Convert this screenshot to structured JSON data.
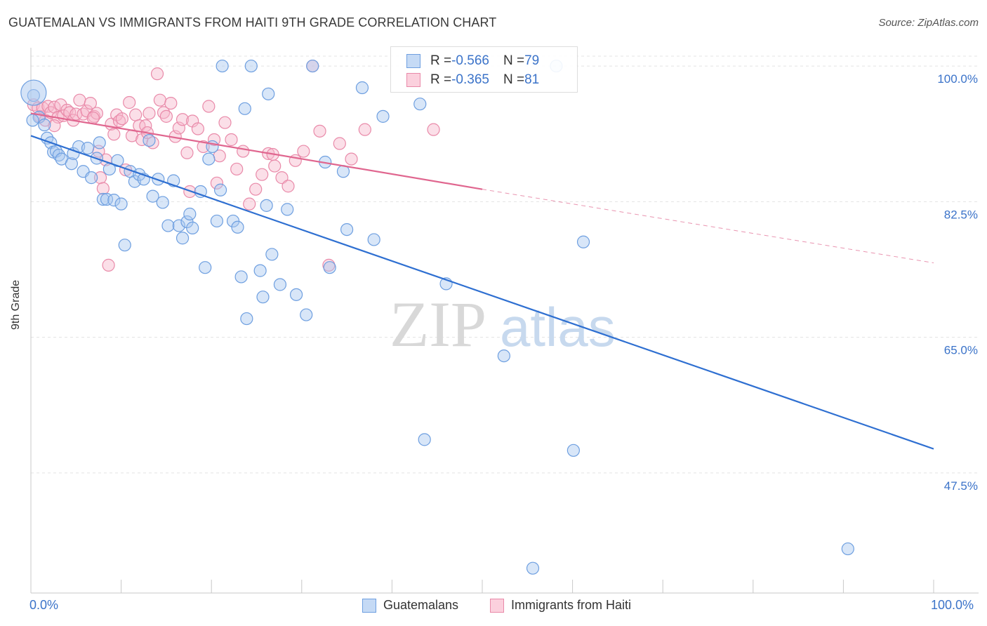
{
  "title": "GUATEMALAN VS IMMIGRANTS FROM HAITI 9TH GRADE CORRELATION CHART",
  "source": "Source: ZipAtlas.com",
  "watermark": {
    "zip": "ZIP",
    "atlas": "atlas"
  },
  "legend": {
    "rows": [
      {
        "r_label": "R = ",
        "r_value": "-0.566",
        "n_label": "N = ",
        "n_value": "79",
        "color": "#a9c8f0",
        "border": "#6e9fe0"
      },
      {
        "r_label": "R = ",
        "r_value": "-0.365",
        "n_label": "N = ",
        "n_value": "81",
        "color": "#f7b8cb",
        "border": "#e98aa9"
      }
    ]
  },
  "bottom_legend": [
    "Guatemalans",
    "Immigrants from Haiti"
  ],
  "colors": {
    "blue_fill": "#a9c8f0",
    "blue_stroke": "#6e9fe0",
    "blue_line": "#2e6fd1",
    "pink_fill": "#f7b8cb",
    "pink_stroke": "#e98aa9",
    "pink_line": "#e0668f",
    "tick": "#3b73c9"
  },
  "chart_data": {
    "type": "scatter",
    "title": "GUATEMALAN VS IMMIGRANTS FROM HAITI 9TH GRADE CORRELATION CHART",
    "xlabel": "",
    "ylabel": "9th Grade",
    "xlim": [
      0,
      100
    ],
    "ylim": [
      32,
      102
    ],
    "x_tick_labels": [
      "0.0%",
      "100.0%"
    ],
    "y_ticks": [
      100,
      82.5,
      65,
      47.5
    ],
    "y_tick_labels": [
      "100.0%",
      "82.5%",
      "65.0%",
      "47.5%"
    ],
    "grid": "horizontal dashed",
    "series": [
      {
        "name": "Guatemalans",
        "trend": {
          "x0": 0,
          "y0": 91.0,
          "x1": 100,
          "y1": 50.6
        },
        "points": [
          [
            0.3,
            96.2
          ],
          [
            0.9,
            93.4
          ],
          [
            1.5,
            92.4
          ],
          [
            1.8,
            90.7
          ],
          [
            2.2,
            90.1
          ],
          [
            2.5,
            88.9
          ],
          [
            2.8,
            89.0
          ],
          [
            3.1,
            88.5
          ],
          [
            3.4,
            88.0
          ],
          [
            4.5,
            87.4
          ],
          [
            4.7,
            88.7
          ],
          [
            5.3,
            89.6
          ],
          [
            5.8,
            86.4
          ],
          [
            6.3,
            89.4
          ],
          [
            6.7,
            85.6
          ],
          [
            7.3,
            88.1
          ],
          [
            7.6,
            90.1
          ],
          [
            8.0,
            82.8
          ],
          [
            8.4,
            82.8
          ],
          [
            8.7,
            86.7
          ],
          [
            9.2,
            82.7
          ],
          [
            9.6,
            87.8
          ],
          [
            10.0,
            82.2
          ],
          [
            10.4,
            76.9
          ],
          [
            11.0,
            86.4
          ],
          [
            11.5,
            85.1
          ],
          [
            12.0,
            86.0
          ],
          [
            12.5,
            85.4
          ],
          [
            13.1,
            90.4
          ],
          [
            13.5,
            83.2
          ],
          [
            14.1,
            85.4
          ],
          [
            14.6,
            82.4
          ],
          [
            15.2,
            79.4
          ],
          [
            15.8,
            85.2
          ],
          [
            16.4,
            79.4
          ],
          [
            16.8,
            77.8
          ],
          [
            17.3,
            79.9
          ],
          [
            17.6,
            80.9
          ],
          [
            17.9,
            79.1
          ],
          [
            18.8,
            83.8
          ],
          [
            19.3,
            74.0
          ],
          [
            19.7,
            88.0
          ],
          [
            20.1,
            89.6
          ],
          [
            20.6,
            80.0
          ],
          [
            21.0,
            84.0
          ],
          [
            21.2,
            100.0
          ],
          [
            22.4,
            80.0
          ],
          [
            22.9,
            79.2
          ],
          [
            23.3,
            72.8
          ],
          [
            23.7,
            94.5
          ],
          [
            23.9,
            67.4
          ],
          [
            24.4,
            100.0
          ],
          [
            25.4,
            73.6
          ],
          [
            25.7,
            70.2
          ],
          [
            26.1,
            82.0
          ],
          [
            26.3,
            96.4
          ],
          [
            26.7,
            75.7
          ],
          [
            27.6,
            71.8
          ],
          [
            28.4,
            81.5
          ],
          [
            29.4,
            70.5
          ],
          [
            30.5,
            67.9
          ],
          [
            31.2,
            100.0
          ],
          [
            32.6,
            87.6
          ],
          [
            33.1,
            74.0
          ],
          [
            34.6,
            86.4
          ],
          [
            35.0,
            78.9
          ],
          [
            36.7,
            97.2
          ],
          [
            38.0,
            77.6
          ],
          [
            39.0,
            93.5
          ],
          [
            43.1,
            95.1
          ],
          [
            43.6,
            51.8
          ],
          [
            46.0,
            71.9
          ],
          [
            52.4,
            62.6
          ],
          [
            55.6,
            35.2
          ],
          [
            58.2,
            100.0
          ],
          [
            60.1,
            50.4
          ],
          [
            61.2,
            77.3
          ],
          [
            90.5,
            37.7
          ],
          [
            0.2,
            93.0
          ]
        ]
      },
      {
        "name": "Immigrants from Haiti",
        "trend": {
          "x0": 0,
          "y0": 93.9,
          "x1": 50,
          "y1": 84.1,
          "dash_x1": 100,
          "dash_y1": 74.6
        },
        "points": [
          [
            0.3,
            95.0
          ],
          [
            0.8,
            94.6
          ],
          [
            1.0,
            93.5
          ],
          [
            1.3,
            94.6
          ],
          [
            1.6,
            93.0
          ],
          [
            1.9,
            94.8
          ],
          [
            2.2,
            94.0
          ],
          [
            2.6,
            94.7
          ],
          [
            3.0,
            93.4
          ],
          [
            3.3,
            95.0
          ],
          [
            3.6,
            93.6
          ],
          [
            4.0,
            94.3
          ],
          [
            4.3,
            94.0
          ],
          [
            4.7,
            93.0
          ],
          [
            5.0,
            93.8
          ],
          [
            5.4,
            95.6
          ],
          [
            5.8,
            93.8
          ],
          [
            6.2,
            94.2
          ],
          [
            6.6,
            95.2
          ],
          [
            7.0,
            93.5
          ],
          [
            7.3,
            93.9
          ],
          [
            7.5,
            89.0
          ],
          [
            7.7,
            85.6
          ],
          [
            8.0,
            84.2
          ],
          [
            8.3,
            87.9
          ],
          [
            8.6,
            74.3
          ],
          [
            8.9,
            92.5
          ],
          [
            9.2,
            91.2
          ],
          [
            9.5,
            93.7
          ],
          [
            9.8,
            92.9
          ],
          [
            10.1,
            93.2
          ],
          [
            10.5,
            86.6
          ],
          [
            10.9,
            95.3
          ],
          [
            11.2,
            91.0
          ],
          [
            11.6,
            93.7
          ],
          [
            12.0,
            92.3
          ],
          [
            12.3,
            90.5
          ],
          [
            12.7,
            92.3
          ],
          [
            13.1,
            93.9
          ],
          [
            13.5,
            90.1
          ],
          [
            14.0,
            99.0
          ],
          [
            14.3,
            95.6
          ],
          [
            14.7,
            94.0
          ],
          [
            15.0,
            93.5
          ],
          [
            15.5,
            95.2
          ],
          [
            16.0,
            90.9
          ],
          [
            16.4,
            92.0
          ],
          [
            16.8,
            93.1
          ],
          [
            17.3,
            88.8
          ],
          [
            17.9,
            92.9
          ],
          [
            18.5,
            91.9
          ],
          [
            19.1,
            89.6
          ],
          [
            19.7,
            94.8
          ],
          [
            20.3,
            90.5
          ],
          [
            20.9,
            88.4
          ],
          [
            21.5,
            92.7
          ],
          [
            22.2,
            90.5
          ],
          [
            22.8,
            86.7
          ],
          [
            23.5,
            89.0
          ],
          [
            24.2,
            82.2
          ],
          [
            24.9,
            84.1
          ],
          [
            25.6,
            86.0
          ],
          [
            26.3,
            88.7
          ],
          [
            27.0,
            87.1
          ],
          [
            27.8,
            85.6
          ],
          [
            28.5,
            84.5
          ],
          [
            29.3,
            87.8
          ],
          [
            30.2,
            89.0
          ],
          [
            31.2,
            100.0
          ],
          [
            32.0,
            91.6
          ],
          [
            33.0,
            74.3
          ],
          [
            34.2,
            90.0
          ],
          [
            35.5,
            88.0
          ],
          [
            37.0,
            91.8
          ],
          [
            44.6,
            91.8
          ],
          [
            2.6,
            92.3
          ],
          [
            6.9,
            93.3
          ],
          [
            12.9,
            91.4
          ],
          [
            17.6,
            83.8
          ],
          [
            26.8,
            88.6
          ],
          [
            20.6,
            84.9
          ]
        ]
      }
    ]
  }
}
